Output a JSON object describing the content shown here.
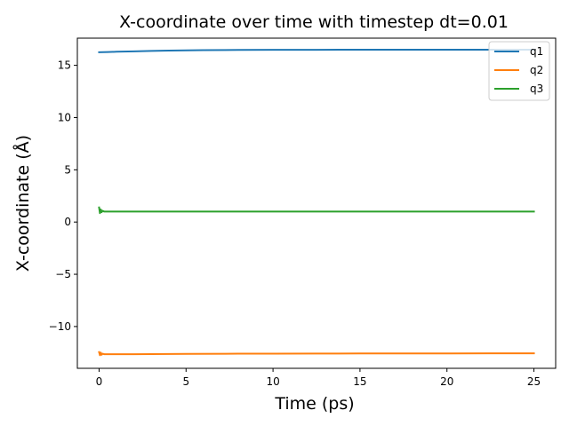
{
  "chart_data": {
    "type": "line",
    "title": "X-coordinate over time with timestep dt=0.01",
    "xlabel": "Time (ps)",
    "ylabel": "X-coordinate (Å)",
    "xlim": [
      -1.25,
      26.25
    ],
    "ylim": [
      -14.0,
      17.6
    ],
    "xticks": [
      0,
      5,
      10,
      15,
      20,
      25
    ],
    "yticks": [
      -10,
      -5,
      0,
      5,
      10,
      15
    ],
    "xtick_labels": [
      "0",
      "5",
      "10",
      "15",
      "20",
      "25"
    ],
    "ytick_labels": [
      "−10",
      "−5",
      "0",
      "5",
      "10",
      "15"
    ],
    "grid": false,
    "legend_position": "top-right",
    "series": [
      {
        "name": "q1",
        "color": "#1f77b4",
        "x": [
          0,
          0.5,
          1,
          2,
          3,
          4,
          5,
          6,
          8,
          10,
          12.5,
          15,
          17.5,
          20,
          22.5,
          25
        ],
        "y": [
          16.25,
          16.27,
          16.3,
          16.34,
          16.38,
          16.41,
          16.43,
          16.45,
          16.47,
          16.48,
          16.49,
          16.5,
          16.5,
          16.5,
          16.5,
          16.5
        ]
      },
      {
        "name": "q2",
        "color": "#ff7f0e",
        "x": [
          0,
          0.05,
          0.1,
          0.15,
          0.2,
          0.3,
          1,
          2,
          3,
          5,
          8,
          10,
          12.5,
          15,
          17.5,
          20,
          22.5,
          25
        ],
        "y": [
          -12.45,
          -12.75,
          -12.5,
          -12.7,
          -12.6,
          -12.65,
          -12.65,
          -12.65,
          -12.64,
          -12.62,
          -12.6,
          -12.6,
          -12.59,
          -12.58,
          -12.58,
          -12.58,
          -12.57,
          -12.57
        ]
      },
      {
        "name": "q3",
        "color": "#2ca02c",
        "x": [
          0,
          0.05,
          0.1,
          0.15,
          0.2,
          0.3,
          1,
          2,
          3,
          5,
          8,
          10,
          12.5,
          15,
          17.5,
          20,
          22.5,
          25
        ],
        "y": [
          1.4,
          0.85,
          1.2,
          0.95,
          1.08,
          1.0,
          1.0,
          1.0,
          1.0,
          1.0,
          1.0,
          1.0,
          1.0,
          1.0,
          1.0,
          1.0,
          1.0,
          1.0
        ]
      }
    ]
  }
}
